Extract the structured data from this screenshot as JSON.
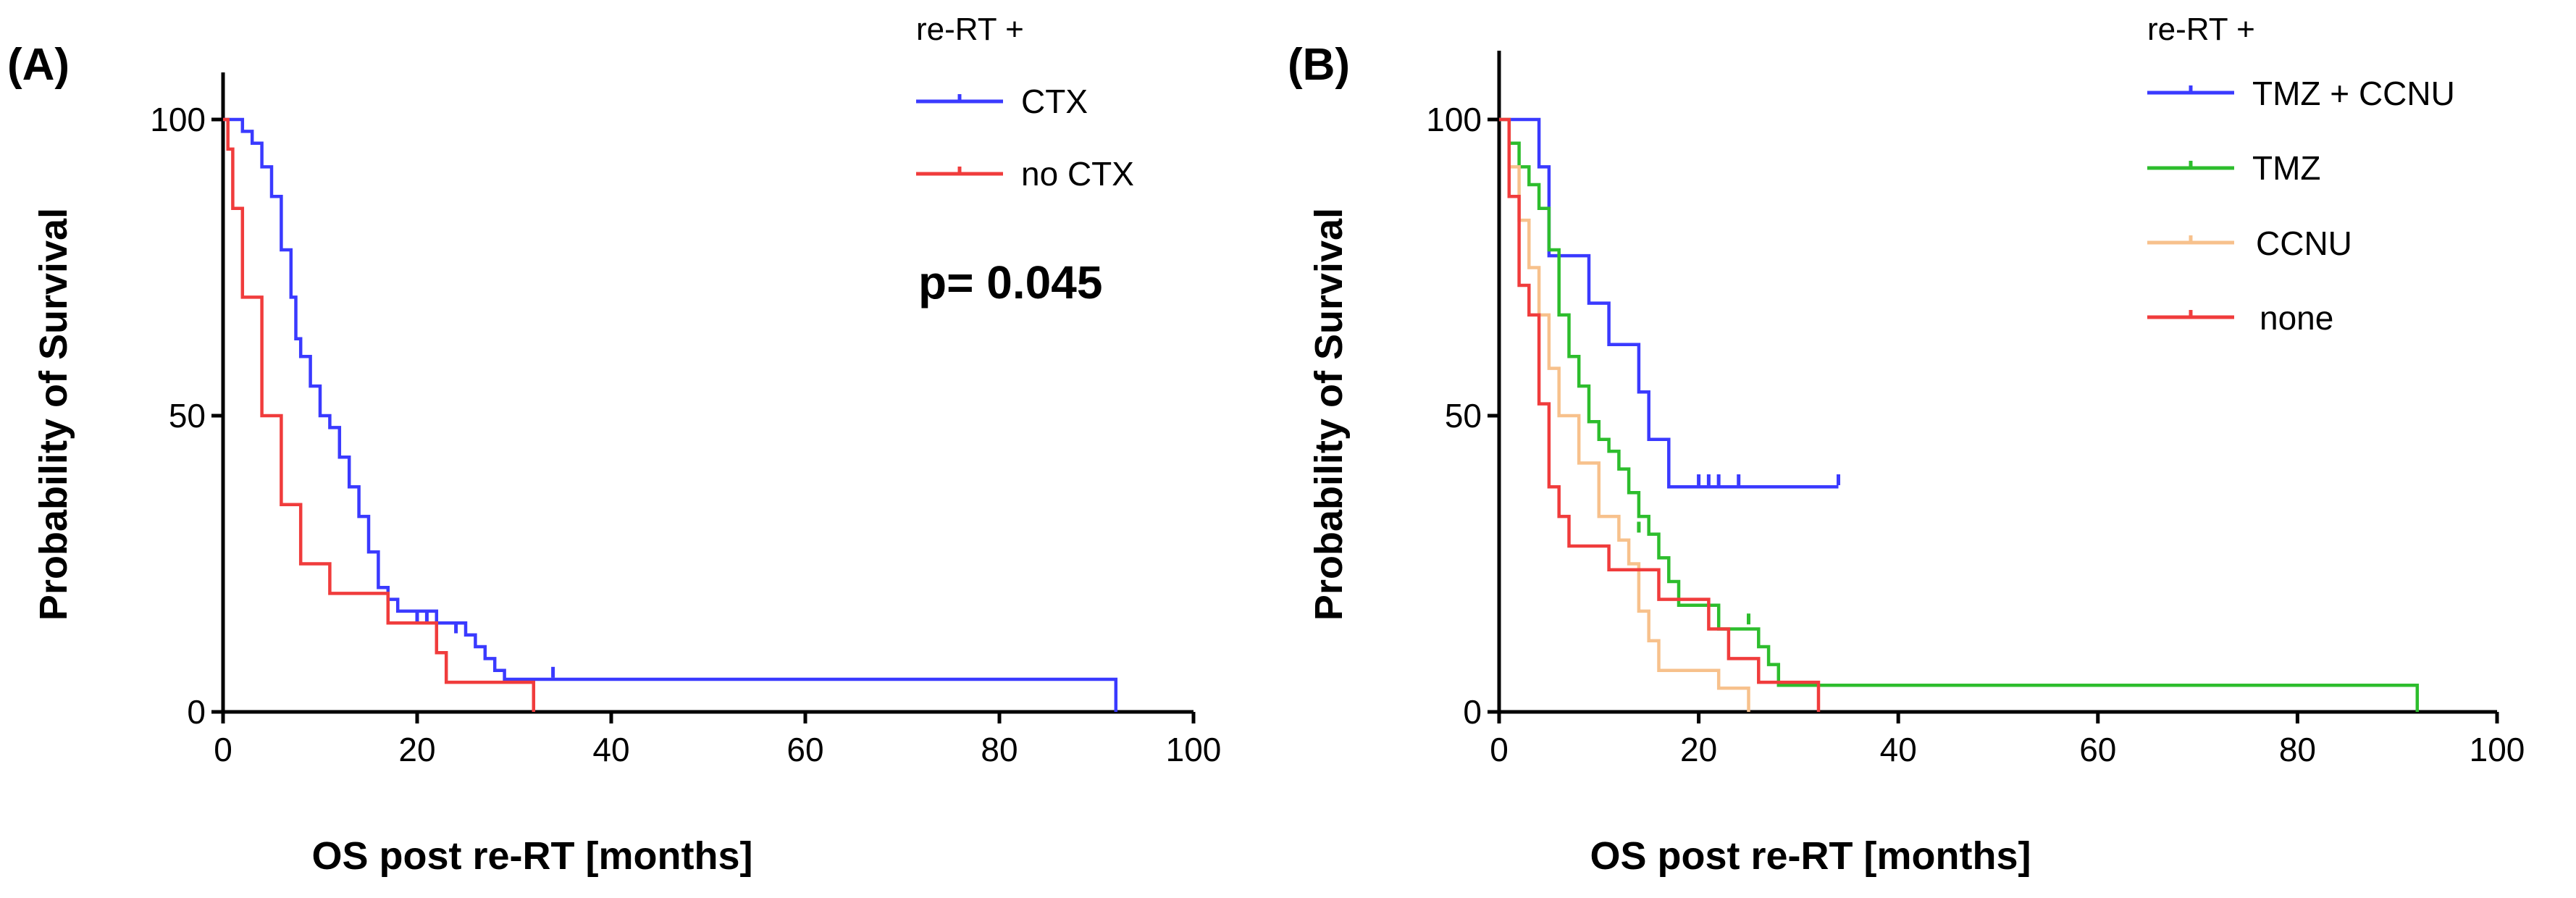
{
  "chart_data": [
    {
      "type": "line",
      "panel_label": "(A)",
      "xlabel": "OS post re-RT [months]",
      "ylabel": "Probability of Survival",
      "xlim": [
        0,
        100
      ],
      "ylim": [
        0,
        100
      ],
      "xticks": [
        "0",
        "20",
        "40",
        "60",
        "80",
        "100"
      ],
      "yticks": [
        "0",
        "50",
        "100"
      ],
      "legend_title": "re-RT +",
      "legend_position": "top-right",
      "annotation": "p= 0.045",
      "series": [
        {
          "name": "CTX",
          "color": "#3a3aff",
          "points": [
            [
              0,
              100
            ],
            [
              2,
              100
            ],
            [
              2,
              98
            ],
            [
              3,
              98
            ],
            [
              3,
              96
            ],
            [
              4,
              96
            ],
            [
              4,
              92
            ],
            [
              5,
              92
            ],
            [
              5,
              87
            ],
            [
              6,
              87
            ],
            [
              6,
              78
            ],
            [
              7,
              78
            ],
            [
              7,
              70
            ],
            [
              7.5,
              70
            ],
            [
              7.5,
              63
            ],
            [
              8,
              63
            ],
            [
              8,
              60
            ],
            [
              9,
              60
            ],
            [
              9,
              55
            ],
            [
              10,
              55
            ],
            [
              10,
              50
            ],
            [
              11,
              50
            ],
            [
              11,
              48
            ],
            [
              12,
              48
            ],
            [
              12,
              43
            ],
            [
              13,
              43
            ],
            [
              13,
              38
            ],
            [
              14,
              38
            ],
            [
              14,
              33
            ],
            [
              15,
              33
            ],
            [
              15,
              27
            ],
            [
              16,
              27
            ],
            [
              16,
              21
            ],
            [
              17,
              21
            ],
            [
              17,
              19
            ],
            [
              18,
              19
            ],
            [
              18,
              17
            ],
            [
              22,
              17
            ],
            [
              22,
              15
            ],
            [
              25,
              15
            ],
            [
              25,
              13
            ],
            [
              26,
              13
            ],
            [
              26,
              11
            ],
            [
              27,
              11
            ],
            [
              27,
              9
            ],
            [
              28,
              9
            ],
            [
              28,
              7
            ],
            [
              29,
              7
            ],
            [
              29,
              5.5
            ],
            [
              92,
              5.5
            ],
            [
              92,
              0
            ]
          ],
          "censors": [
            [
              20,
              16
            ],
            [
              21,
              16
            ],
            [
              24,
              14
            ],
            [
              34,
              6.5
            ]
          ]
        },
        {
          "name": "no CTX",
          "color": "#f03c3c",
          "points": [
            [
              0,
              100
            ],
            [
              0.5,
              100
            ],
            [
              0.5,
              95
            ],
            [
              1,
              95
            ],
            [
              1,
              85
            ],
            [
              2,
              85
            ],
            [
              2,
              70
            ],
            [
              4,
              70
            ],
            [
              4,
              50
            ],
            [
              6,
              50
            ],
            [
              6,
              35
            ],
            [
              8,
              35
            ],
            [
              8,
              25
            ],
            [
              11,
              25
            ],
            [
              11,
              20
            ],
            [
              17,
              20
            ],
            [
              17,
              15
            ],
            [
              22,
              15
            ],
            [
              22,
              10
            ],
            [
              23,
              10
            ],
            [
              23,
              5
            ],
            [
              32,
              5
            ],
            [
              32,
              0
            ]
          ],
          "censors": []
        }
      ]
    },
    {
      "type": "line",
      "panel_label": "(B)",
      "xlabel": "OS post re-RT [months]",
      "ylabel": "Probability of Survival",
      "xlim": [
        0,
        100
      ],
      "ylim": [
        0,
        100
      ],
      "xticks": [
        "0",
        "20",
        "40",
        "60",
        "80",
        "100"
      ],
      "yticks": [
        "0",
        "50",
        "100"
      ],
      "legend_title": "re-RT +",
      "legend_position": "top-right",
      "series": [
        {
          "name": "TMZ + CCNU",
          "color": "#3a3aff",
          "points": [
            [
              0,
              100
            ],
            [
              4,
              100
            ],
            [
              4,
              92
            ],
            [
              5,
              92
            ],
            [
              5,
              77
            ],
            [
              9,
              77
            ],
            [
              9,
              69
            ],
            [
              11,
              69
            ],
            [
              11,
              62
            ],
            [
              14,
              62
            ],
            [
              14,
              54
            ],
            [
              15,
              54
            ],
            [
              15,
              46
            ],
            [
              17,
              46
            ],
            [
              17,
              38
            ],
            [
              34,
              38
            ]
          ],
          "censors": [
            [
              20,
              39
            ],
            [
              21,
              39
            ],
            [
              22,
              39
            ],
            [
              24,
              39
            ],
            [
              34,
              39
            ]
          ]
        },
        {
          "name": "TMZ",
          "color": "#2dbd2d",
          "points": [
            [
              0,
              100
            ],
            [
              1,
              100
            ],
            [
              1,
              96
            ],
            [
              2,
              96
            ],
            [
              2,
              92
            ],
            [
              3,
              92
            ],
            [
              3,
              89
            ],
            [
              4,
              89
            ],
            [
              4,
              85
            ],
            [
              5,
              85
            ],
            [
              5,
              78
            ],
            [
              6,
              78
            ],
            [
              6,
              67
            ],
            [
              7,
              67
            ],
            [
              7,
              60
            ],
            [
              8,
              60
            ],
            [
              8,
              55
            ],
            [
              9,
              55
            ],
            [
              9,
              49
            ],
            [
              10,
              49
            ],
            [
              10,
              46
            ],
            [
              11,
              46
            ],
            [
              11,
              44
            ],
            [
              12,
              44
            ],
            [
              12,
              41
            ],
            [
              13,
              41
            ],
            [
              13,
              37
            ],
            [
              14,
              37
            ],
            [
              14,
              33
            ],
            [
              15,
              33
            ],
            [
              15,
              30
            ],
            [
              16,
              30
            ],
            [
              16,
              26
            ],
            [
              17,
              26
            ],
            [
              17,
              22
            ],
            [
              18,
              22
            ],
            [
              18,
              18
            ],
            [
              22,
              18
            ],
            [
              22,
              14
            ],
            [
              26,
              14
            ],
            [
              26,
              11
            ],
            [
              27,
              11
            ],
            [
              27,
              8
            ],
            [
              28,
              8
            ],
            [
              28,
              4.5
            ],
            [
              92,
              4.5
            ],
            [
              92,
              0
            ]
          ],
          "censors": [
            [
              14,
              31
            ],
            [
              25,
              15.5
            ]
          ]
        },
        {
          "name": "CCNU",
          "color": "#f7c18c",
          "points": [
            [
              0,
              100
            ],
            [
              1,
              100
            ],
            [
              1,
              92
            ],
            [
              2,
              92
            ],
            [
              2,
              83
            ],
            [
              3,
              83
            ],
            [
              3,
              75
            ],
            [
              4,
              75
            ],
            [
              4,
              67
            ],
            [
              5,
              67
            ],
            [
              5,
              58
            ],
            [
              6,
              58
            ],
            [
              6,
              50
            ],
            [
              8,
              50
            ],
            [
              8,
              42
            ],
            [
              10,
              42
            ],
            [
              10,
              33
            ],
            [
              12,
              33
            ],
            [
              12,
              29
            ],
            [
              13,
              29
            ],
            [
              13,
              25
            ],
            [
              14,
              25
            ],
            [
              14,
              17
            ],
            [
              15,
              17
            ],
            [
              15,
              12
            ],
            [
              16,
              12
            ],
            [
              16,
              7
            ],
            [
              22,
              7
            ],
            [
              22,
              4
            ],
            [
              25,
              4
            ],
            [
              25,
              0
            ]
          ],
          "censors": []
        },
        {
          "name": "none",
          "color": "#f03c3c",
          "points": [
            [
              0,
              100
            ],
            [
              1,
              100
            ],
            [
              1,
              87
            ],
            [
              2,
              87
            ],
            [
              2,
              72
            ],
            [
              3,
              72
            ],
            [
              3,
              67
            ],
            [
              4,
              67
            ],
            [
              4,
              52
            ],
            [
              5,
              52
            ],
            [
              5,
              38
            ],
            [
              6,
              38
            ],
            [
              6,
              33
            ],
            [
              7,
              33
            ],
            [
              7,
              28
            ],
            [
              11,
              28
            ],
            [
              11,
              24
            ],
            [
              16,
              24
            ],
            [
              16,
              19
            ],
            [
              21,
              19
            ],
            [
              21,
              14
            ],
            [
              23,
              14
            ],
            [
              23,
              9
            ],
            [
              26,
              9
            ],
            [
              26,
              5
            ],
            [
              32,
              5
            ],
            [
              32,
              0
            ]
          ],
          "censors": []
        }
      ]
    }
  ]
}
